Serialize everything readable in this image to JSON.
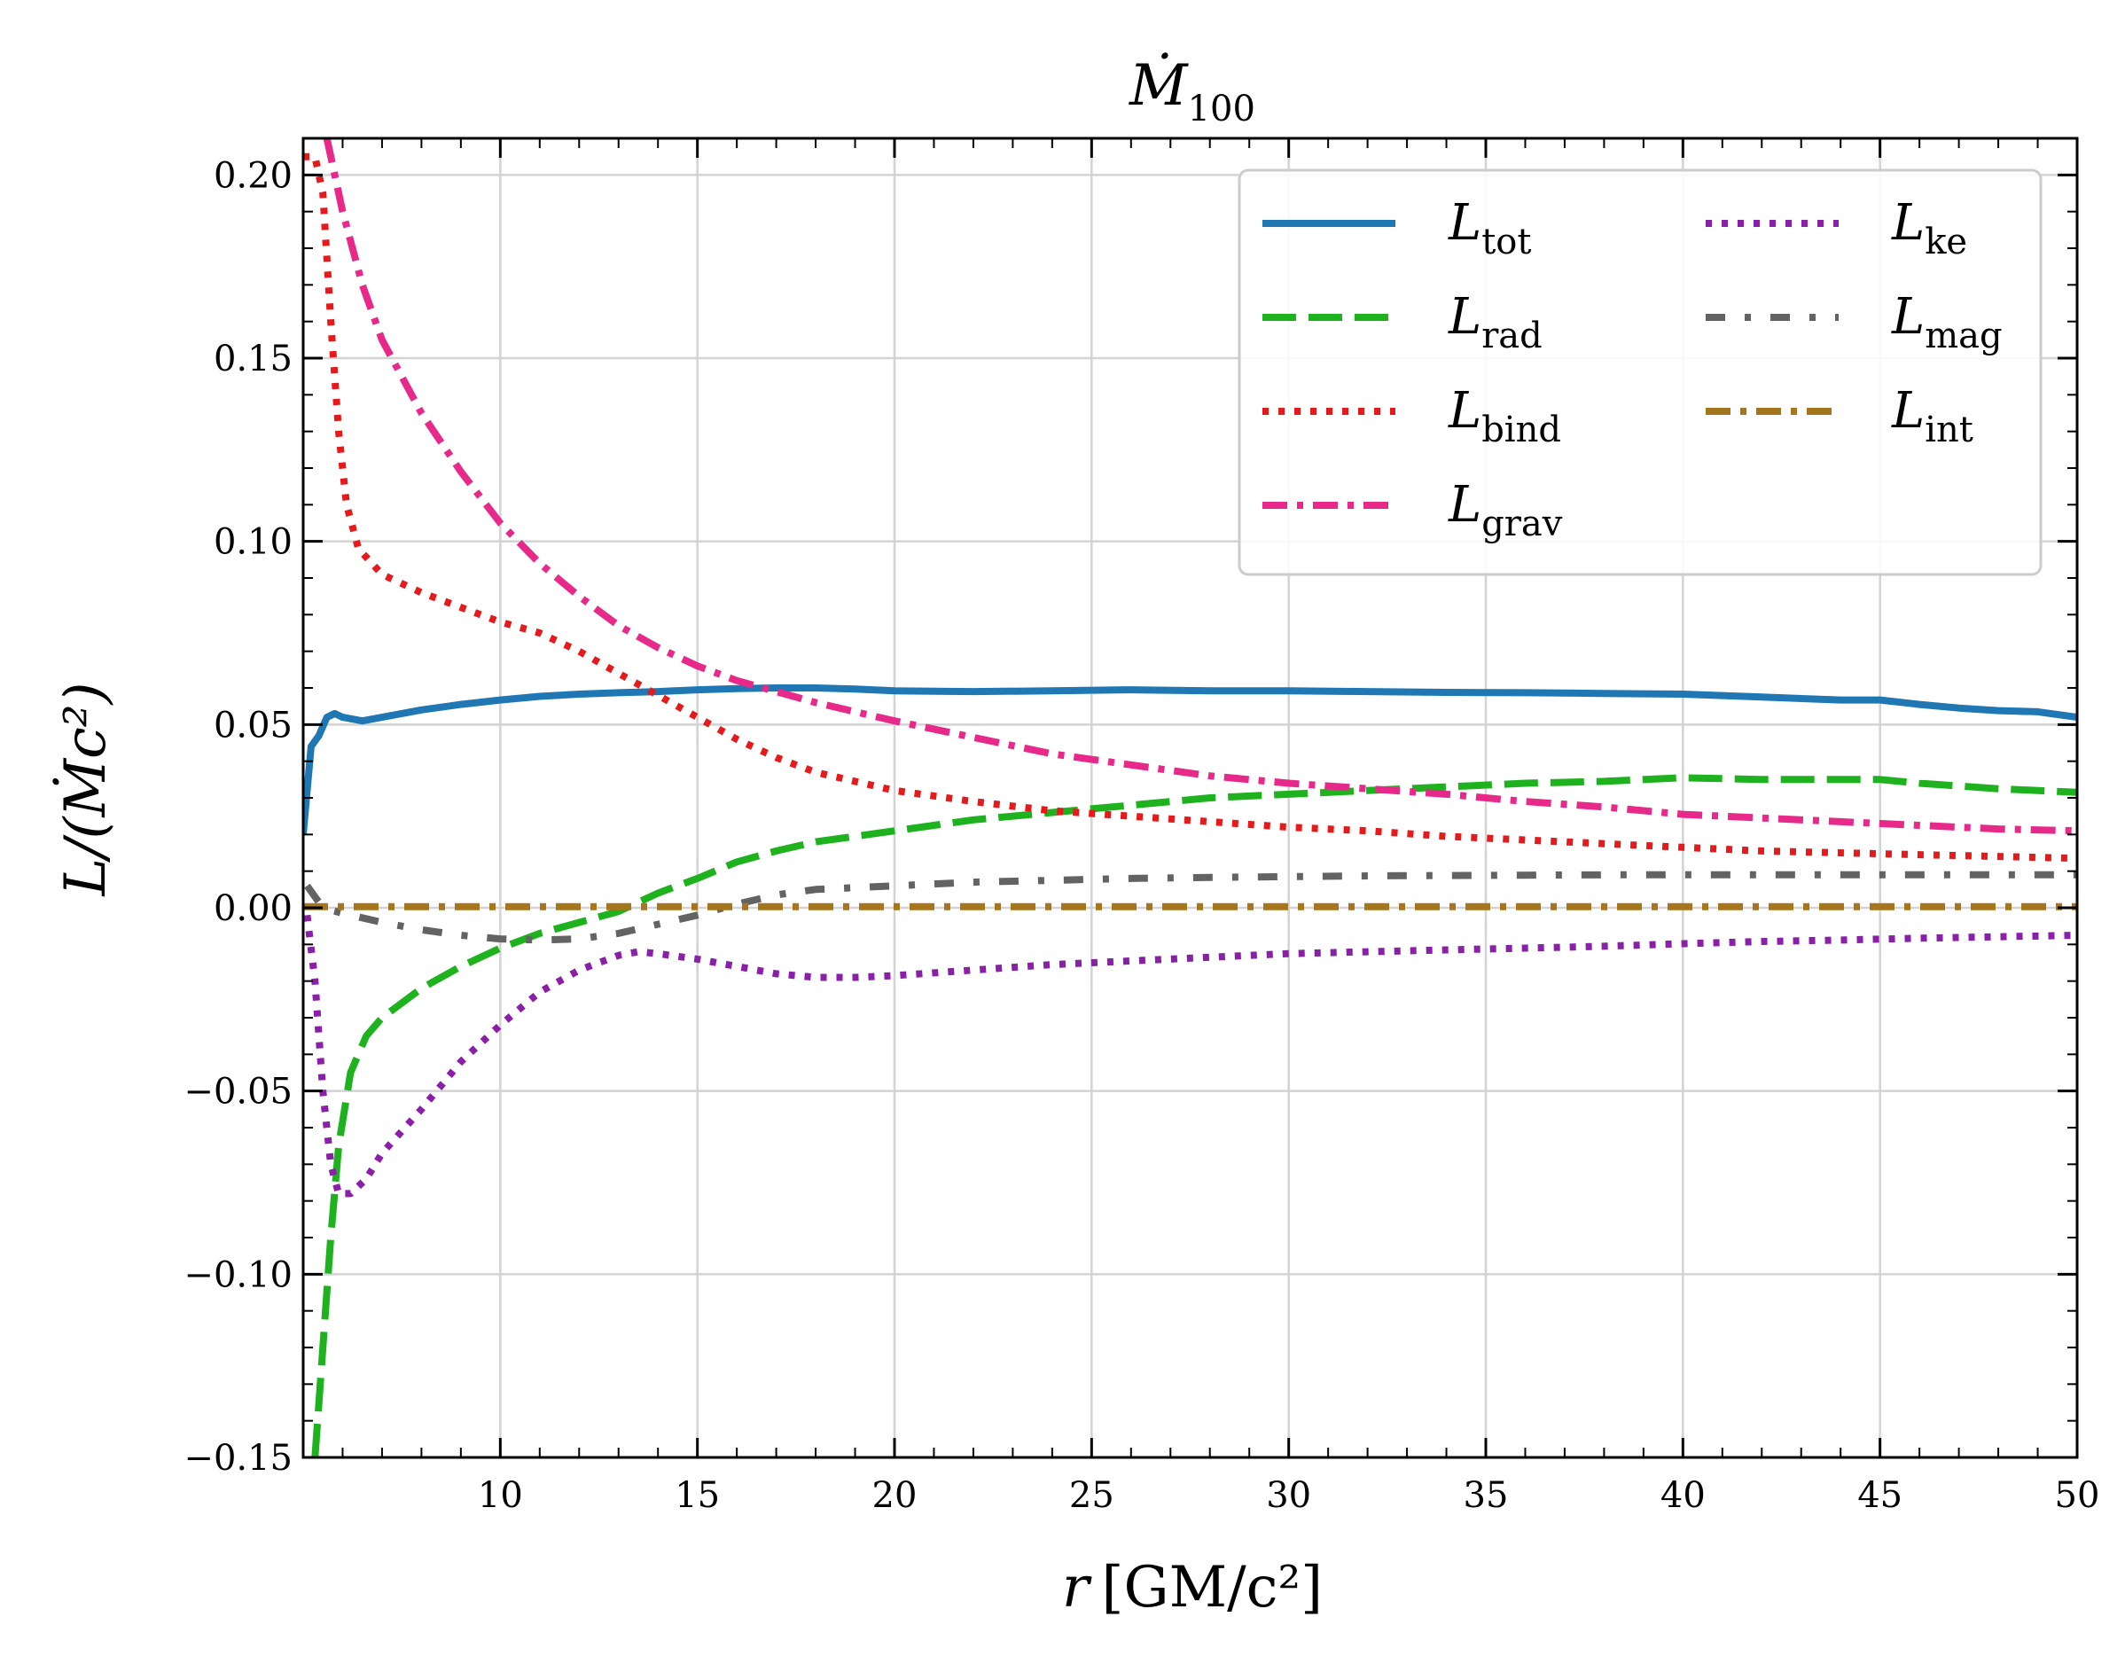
{
  "chart_data": {
    "type": "line",
    "title": "Ṁ",
    "title_sub": "100",
    "xlabel": "r",
    "xlabel_unit": "[GM/c²]",
    "ylabel": "L/(Ṁc²)",
    "xlim": [
      5,
      50
    ],
    "ylim": [
      -0.15,
      0.21
    ],
    "xticks": [
      10,
      15,
      20,
      25,
      30,
      35,
      40,
      45,
      50
    ],
    "yticks": [
      -0.15,
      -0.1,
      -0.05,
      0.0,
      0.05,
      0.1,
      0.15,
      0.2
    ],
    "xtick_labels": [
      "10",
      "15",
      "20",
      "25",
      "30",
      "35",
      "40",
      "45",
      "50"
    ],
    "ytick_labels": [
      "−0.15",
      "−0.10",
      "−0.05",
      "0.00",
      "0.05",
      "0.10",
      "0.15",
      "0.20"
    ],
    "grid": true,
    "legend_position": "top-right",
    "legend_columns": 2,
    "series": [
      {
        "name": "L",
        "sub": "tot",
        "color": "#1f77b4",
        "dash": "solid",
        "points": [
          [
            5.0,
            0.02
          ],
          [
            5.2,
            0.044
          ],
          [
            5.4,
            0.047
          ],
          [
            5.6,
            0.052
          ],
          [
            5.8,
            0.053
          ],
          [
            6.0,
            0.052
          ],
          [
            6.5,
            0.051
          ],
          [
            7,
            0.052
          ],
          [
            8,
            0.054
          ],
          [
            9,
            0.0555
          ],
          [
            10,
            0.0567
          ],
          [
            11,
            0.0577
          ],
          [
            12,
            0.0583
          ],
          [
            13,
            0.0587
          ],
          [
            14,
            0.059
          ],
          [
            15,
            0.0595
          ],
          [
            16,
            0.0598
          ],
          [
            17,
            0.06
          ],
          [
            18,
            0.06
          ],
          [
            19,
            0.0597
          ],
          [
            20,
            0.0592
          ],
          [
            22,
            0.059
          ],
          [
            24,
            0.0592
          ],
          [
            26,
            0.0595
          ],
          [
            28,
            0.0592
          ],
          [
            30,
            0.0592
          ],
          [
            32,
            0.059
          ],
          [
            34,
            0.0588
          ],
          [
            36,
            0.0587
          ],
          [
            38,
            0.0585
          ],
          [
            40,
            0.0583
          ],
          [
            42,
            0.0575
          ],
          [
            44,
            0.0567
          ],
          [
            45,
            0.0567
          ],
          [
            46,
            0.0555
          ],
          [
            47,
            0.0545
          ],
          [
            48,
            0.0538
          ],
          [
            49,
            0.0535
          ],
          [
            50,
            0.052
          ]
        ]
      },
      {
        "name": "L",
        "sub": "rad",
        "color": "#1fb21f",
        "dash": "dashed",
        "points": [
          [
            5.3,
            -0.15
          ],
          [
            5.5,
            -0.12
          ],
          [
            5.7,
            -0.09
          ],
          [
            5.9,
            -0.065
          ],
          [
            6.2,
            -0.045
          ],
          [
            6.6,
            -0.035
          ],
          [
            7,
            -0.03
          ],
          [
            8,
            -0.022
          ],
          [
            9,
            -0.016
          ],
          [
            10,
            -0.011
          ],
          [
            11,
            -0.007
          ],
          [
            12,
            -0.004
          ],
          [
            13,
            -0.001
          ],
          [
            14,
            0.004
          ],
          [
            15,
            0.008
          ],
          [
            16,
            0.0125
          ],
          [
            17,
            0.0155
          ],
          [
            18,
            0.018
          ],
          [
            20,
            0.021
          ],
          [
            22,
            0.024
          ],
          [
            24,
            0.026
          ],
          [
            26,
            0.028
          ],
          [
            28,
            0.03
          ],
          [
            30,
            0.031
          ],
          [
            32,
            0.032
          ],
          [
            34,
            0.033
          ],
          [
            36,
            0.034
          ],
          [
            38,
            0.0345
          ],
          [
            40,
            0.0355
          ],
          [
            42,
            0.035
          ],
          [
            44,
            0.035
          ],
          [
            45,
            0.035
          ],
          [
            46,
            0.034
          ],
          [
            48,
            0.0325
          ],
          [
            50,
            0.0315
          ]
        ]
      },
      {
        "name": "L",
        "sub": "bind",
        "color": "#e41a1c",
        "dash": "dotted",
        "points": [
          [
            5.0,
            0.205
          ],
          [
            5.3,
            0.205
          ],
          [
            5.5,
            0.195
          ],
          [
            5.7,
            0.16
          ],
          [
            5.9,
            0.13
          ],
          [
            6.1,
            0.11
          ],
          [
            6.4,
            0.098
          ],
          [
            7,
            0.091
          ],
          [
            8,
            0.086
          ],
          [
            9,
            0.082
          ],
          [
            10,
            0.078
          ],
          [
            11,
            0.075
          ],
          [
            12,
            0.07
          ],
          [
            13,
            0.064
          ],
          [
            14,
            0.058
          ],
          [
            15,
            0.052
          ],
          [
            16,
            0.046
          ],
          [
            17,
            0.041
          ],
          [
            18,
            0.037
          ],
          [
            20,
            0.032
          ],
          [
            22,
            0.029
          ],
          [
            24,
            0.0265
          ],
          [
            26,
            0.025
          ],
          [
            28,
            0.0235
          ],
          [
            30,
            0.022
          ],
          [
            32,
            0.021
          ],
          [
            34,
            0.0195
          ],
          [
            36,
            0.0185
          ],
          [
            38,
            0.0175
          ],
          [
            40,
            0.0165
          ],
          [
            42,
            0.0155
          ],
          [
            44,
            0.015
          ],
          [
            46,
            0.0145
          ],
          [
            48,
            0.014
          ],
          [
            50,
            0.0135
          ]
        ]
      },
      {
        "name": "L",
        "sub": "grav",
        "color": "#e7298a",
        "dash": "dashdot",
        "points": [
          [
            5.6,
            0.21
          ],
          [
            6,
            0.19
          ],
          [
            6.5,
            0.17
          ],
          [
            7,
            0.155
          ],
          [
            8,
            0.135
          ],
          [
            9,
            0.119
          ],
          [
            10,
            0.105
          ],
          [
            11,
            0.094
          ],
          [
            12,
            0.085
          ],
          [
            13,
            0.077
          ],
          [
            14,
            0.071
          ],
          [
            15,
            0.066
          ],
          [
            16,
            0.062
          ],
          [
            17,
            0.059
          ],
          [
            18,
            0.056
          ],
          [
            19,
            0.0535
          ],
          [
            20,
            0.051
          ],
          [
            22,
            0.0465
          ],
          [
            24,
            0.042
          ],
          [
            26,
            0.039
          ],
          [
            28,
            0.036
          ],
          [
            30,
            0.034
          ],
          [
            32,
            0.0325
          ],
          [
            34,
            0.031
          ],
          [
            36,
            0.029
          ],
          [
            38,
            0.0275
          ],
          [
            40,
            0.0255
          ],
          [
            42,
            0.0245
          ],
          [
            44,
            0.0235
          ],
          [
            46,
            0.0225
          ],
          [
            48,
            0.0215
          ],
          [
            50,
            0.021
          ]
        ]
      },
      {
        "name": "L",
        "sub": "ke",
        "color": "#8a1fa8",
        "dash": "dotted",
        "points": [
          [
            5.1,
            -0.002
          ],
          [
            5.3,
            -0.02
          ],
          [
            5.5,
            -0.05
          ],
          [
            5.7,
            -0.07
          ],
          [
            5.9,
            -0.078
          ],
          [
            6.2,
            -0.078
          ],
          [
            6.6,
            -0.074
          ],
          [
            7,
            -0.067
          ],
          [
            8,
            -0.055
          ],
          [
            9,
            -0.042
          ],
          [
            10,
            -0.032
          ],
          [
            11,
            -0.023
          ],
          [
            12,
            -0.017
          ],
          [
            13,
            -0.013
          ],
          [
            13.5,
            -0.012
          ],
          [
            14,
            -0.0125
          ],
          [
            15,
            -0.014
          ],
          [
            16,
            -0.016
          ],
          [
            17,
            -0.018
          ],
          [
            18,
            -0.019
          ],
          [
            19,
            -0.019
          ],
          [
            20,
            -0.0185
          ],
          [
            22,
            -0.017
          ],
          [
            24,
            -0.0155
          ],
          [
            26,
            -0.0145
          ],
          [
            28,
            -0.0135
          ],
          [
            30,
            -0.0125
          ],
          [
            32,
            -0.012
          ],
          [
            34,
            -0.0115
          ],
          [
            36,
            -0.011
          ],
          [
            38,
            -0.0105
          ],
          [
            40,
            -0.0098
          ],
          [
            42,
            -0.0092
          ],
          [
            44,
            -0.0088
          ],
          [
            46,
            -0.0083
          ],
          [
            48,
            -0.0079
          ],
          [
            50,
            -0.0075
          ]
        ]
      },
      {
        "name": "L",
        "sub": "mag",
        "color": "#636363",
        "dash": "dashdotted",
        "points": [
          [
            5.1,
            0.006
          ],
          [
            5.5,
            0.0
          ],
          [
            6,
            -0.0015
          ],
          [
            7,
            -0.004
          ],
          [
            8,
            -0.006
          ],
          [
            9,
            -0.0075
          ],
          [
            10,
            -0.0085
          ],
          [
            11,
            -0.0088
          ],
          [
            12,
            -0.0085
          ],
          [
            13,
            -0.007
          ],
          [
            14,
            -0.0045
          ],
          [
            15,
            -0.002
          ],
          [
            16,
            0.001
          ],
          [
            17,
            0.0035
          ],
          [
            18,
            0.005
          ],
          [
            20,
            0.006
          ],
          [
            22,
            0.007
          ],
          [
            24,
            0.0075
          ],
          [
            26,
            0.008
          ],
          [
            28,
            0.0083
          ],
          [
            30,
            0.0085
          ],
          [
            32,
            0.0087
          ],
          [
            34,
            0.0088
          ],
          [
            36,
            0.0089
          ],
          [
            38,
            0.009
          ],
          [
            40,
            0.009
          ],
          [
            42,
            0.009
          ],
          [
            44,
            0.009
          ],
          [
            46,
            0.009
          ],
          [
            48,
            0.009
          ],
          [
            50,
            0.009
          ]
        ]
      },
      {
        "name": "L",
        "sub": "int",
        "color": "#a6761d",
        "dash": "dashdot",
        "points": [
          [
            5.0,
            0.0003
          ],
          [
            10,
            0.0003
          ],
          [
            15,
            0.0003
          ],
          [
            20,
            0.0003
          ],
          [
            25,
            0.0003
          ],
          [
            30,
            0.0003
          ],
          [
            35,
            0.0003
          ],
          [
            40,
            0.0003
          ],
          [
            45,
            0.0003
          ],
          [
            50,
            0.0003
          ]
        ]
      }
    ]
  }
}
